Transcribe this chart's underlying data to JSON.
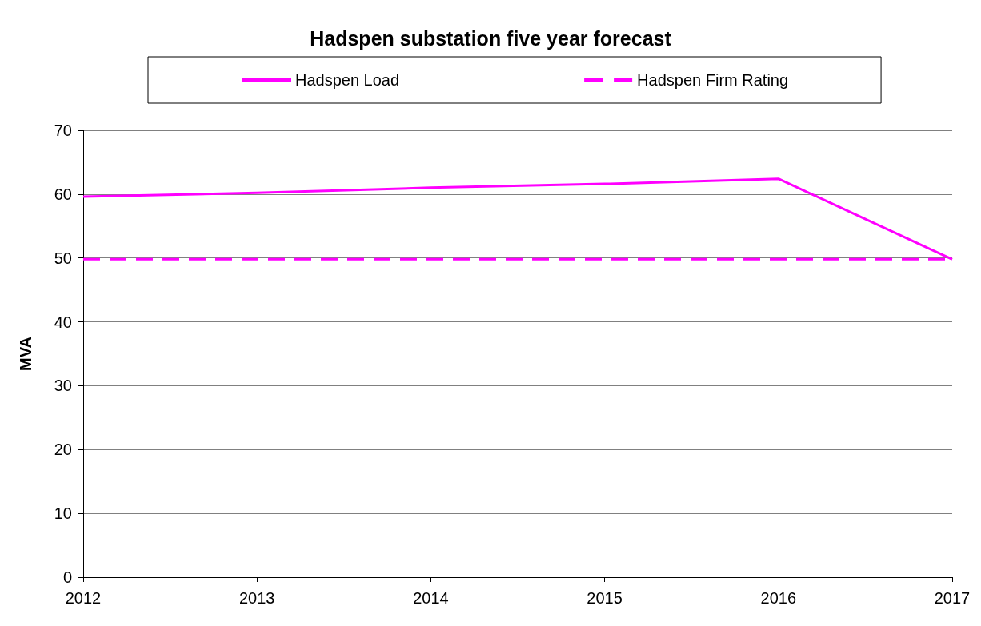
{
  "chart_data": {
    "type": "line",
    "title": "Hadspen substation five year forecast",
    "ylabel": "MVA",
    "categories": [
      "2012",
      "2013",
      "2014",
      "2015",
      "2016",
      "2017"
    ],
    "series": [
      {
        "name": "Hadspen Load",
        "color": "#ff00ff",
        "line_style": "solid",
        "values": [
          59.6,
          60.2,
          61.0,
          61.6,
          62.4,
          49.8
        ]
      },
      {
        "name": "Hadspen Firm Rating",
        "color": "#ff00ff",
        "line_style": "dashed",
        "values": [
          49.8,
          49.8,
          49.8,
          49.8,
          49.8,
          49.8
        ]
      }
    ],
    "ylim": [
      0,
      70
    ],
    "yticks": [
      0,
      10,
      20,
      30,
      40,
      50,
      60,
      70
    ],
    "grid": "y",
    "legend": "top",
    "marker": "none"
  }
}
